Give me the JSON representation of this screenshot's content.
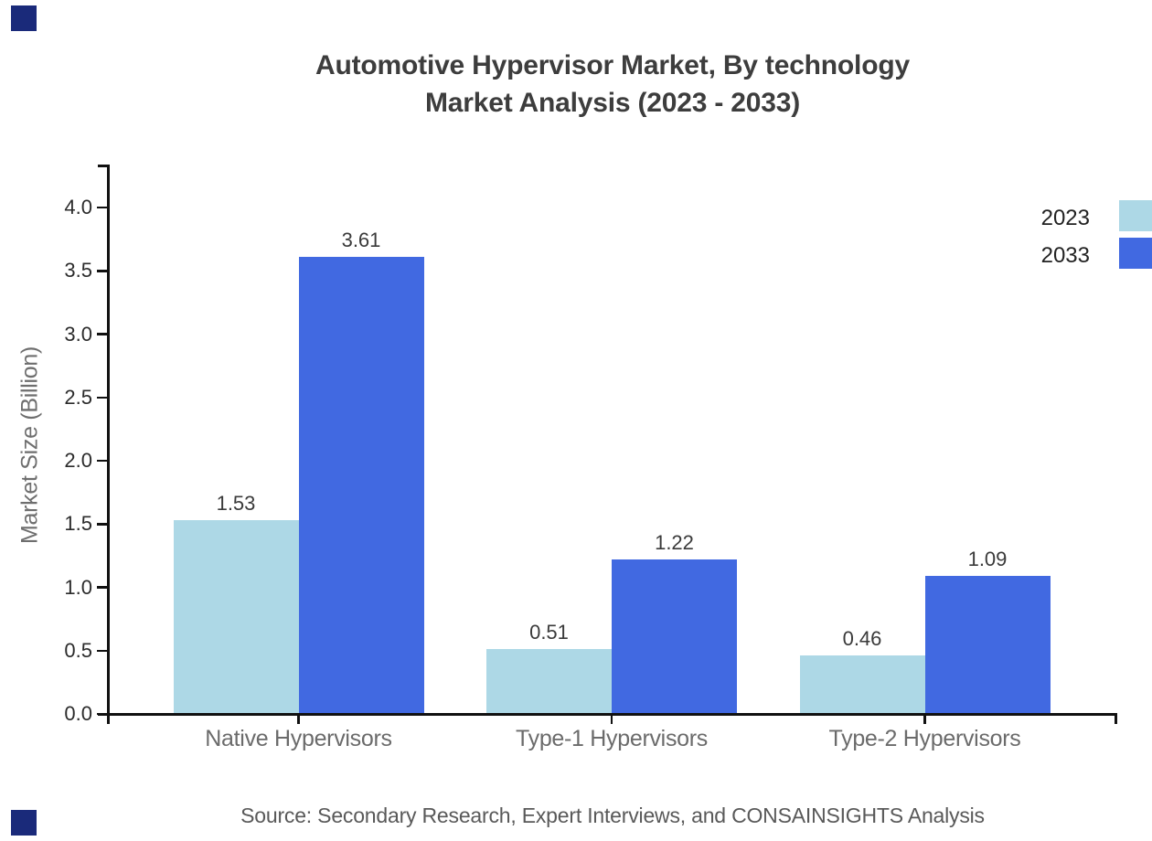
{
  "branding": {
    "corner_square_color": "#1a2a7a"
  },
  "chart_data": {
    "type": "bar",
    "title_line1": "Automotive Hypervisor Market, By technology",
    "title_line2": "Market Analysis (2023 - 2033)",
    "ylabel": "Market Size (Billion)",
    "xlabel": "",
    "categories": [
      "Native Hypervisors",
      "Type-1 Hypervisors",
      "Type-2 Hypervisors"
    ],
    "series": [
      {
        "name": "2023",
        "color": "#ADD8E6",
        "values": [
          1.53,
          0.51,
          0.46
        ]
      },
      {
        "name": "2033",
        "color": "#4169E1",
        "values": [
          3.61,
          1.22,
          1.09
        ]
      }
    ],
    "ylim": [
      0,
      4.0
    ],
    "yticks": [
      "0.0",
      "0.5",
      "1.0",
      "1.5",
      "2.0",
      "2.5",
      "3.0",
      "3.5",
      "4.0"
    ],
    "legend_position": "top-right",
    "grid": false,
    "axis_color": "#111111",
    "source": "Source: Secondary Research, Expert Interviews, and CONSAINSIGHTS Analysis"
  }
}
